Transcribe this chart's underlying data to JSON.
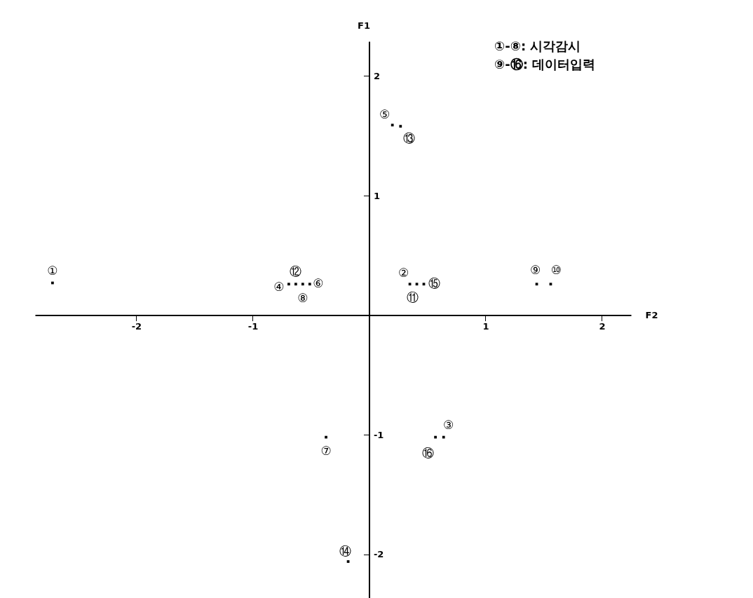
{
  "chart_data": {
    "type": "scatter",
    "xlabel": "F2",
    "ylabel": "F1",
    "x": [
      -2.72,
      0.35,
      0.64,
      -0.69,
      0.2,
      -0.51,
      -0.37,
      -0.57,
      1.44,
      1.56,
      0.41,
      -0.63,
      0.27,
      -0.18,
      0.47,
      0.57
    ],
    "values": [
      0.27,
      0.26,
      -1.02,
      0.26,
      1.59,
      0.26,
      -1.02,
      0.26,
      0.26,
      0.26,
      0.26,
      0.26,
      1.58,
      -2.06,
      0.26,
      -1.02
    ],
    "value_labels": [
      "①",
      "②",
      "③",
      "④",
      "⑤",
      "⑥",
      "⑦",
      "⑧",
      "⑨",
      "⑩",
      "⑪",
      "⑫",
      "⑬",
      "⑭",
      "⑮",
      "⑯"
    ],
    "color": "#000000",
    "marker": "square",
    "xlim": [
      -2.87,
      2.25
    ],
    "xticks": [
      -2,
      -1,
      1,
      2
    ],
    "ylim": [
      -2.4,
      2.29
    ],
    "yticks": [
      -2,
      -1,
      1,
      2
    ],
    "grid": false,
    "annotations": [
      "①-⑧: 시각감시",
      "⑨-⑯: 데이터입력"
    ]
  }
}
